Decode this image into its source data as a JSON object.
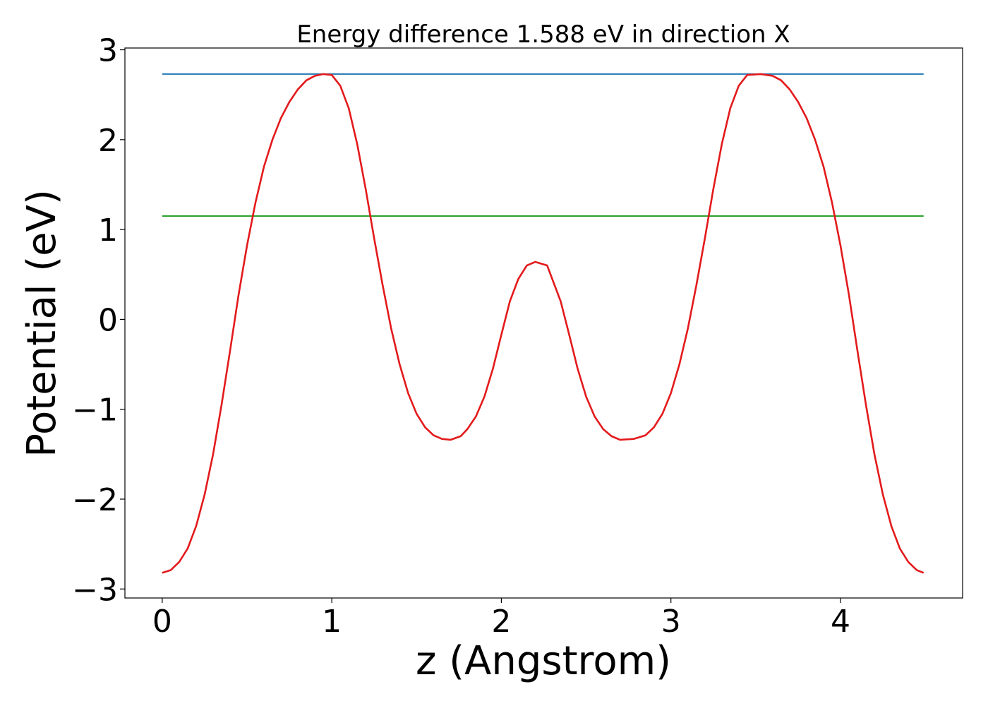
{
  "chart_data": {
    "type": "line",
    "title": "Energy difference 1.588 eV in direction X",
    "xlabel": "z (Angstrom)",
    "ylabel": "Potential (eV)",
    "xlim": [
      -0.22,
      4.72
    ],
    "ylim": [
      -3.1,
      3.02
    ],
    "xticks": [
      0,
      1,
      2,
      3,
      4
    ],
    "xtick_labels": [
      "0",
      "1",
      "2",
      "3",
      "4"
    ],
    "yticks": [
      -3,
      -2,
      -1,
      0,
      1,
      2,
      3
    ],
    "ytick_labels": [
      "−3",
      "−2",
      "−1",
      "0",
      "1",
      "2",
      "3"
    ],
    "grid": false,
    "series": [
      {
        "kind": "hline",
        "y": 2.73,
        "x": [
          0,
          4.49
        ],
        "color": "#1f77b4"
      },
      {
        "kind": "hline",
        "y": 1.15,
        "x": [
          0,
          4.49
        ],
        "color": "#2ca02c"
      },
      {
        "kind": "curve",
        "color": "#e31a1c",
        "x": [
          0,
          0.05,
          0.1,
          0.15,
          0.2,
          0.25,
          0.3,
          0.35,
          0.4,
          0.45,
          0.5,
          0.55,
          0.6,
          0.65,
          0.7,
          0.75,
          0.8,
          0.85,
          0.9,
          0.95,
          1.0,
          1.05,
          1.1,
          1.15,
          1.2,
          1.25,
          1.3,
          1.35,
          1.4,
          1.45,
          1.5,
          1.55,
          1.6,
          1.65,
          1.7,
          1.76,
          1.8,
          1.85,
          1.9,
          1.95,
          2.0,
          2.05,
          2.1,
          2.15,
          2.2,
          2.27,
          2.3,
          2.35,
          2.4,
          2.45,
          2.5,
          2.55,
          2.6,
          2.65,
          2.7,
          2.78,
          2.85,
          2.9,
          2.95,
          3.0,
          3.05,
          3.1,
          3.15,
          3.2,
          3.25,
          3.3,
          3.35,
          3.4,
          3.45,
          3.53,
          3.6,
          3.65,
          3.7,
          3.75,
          3.8,
          3.85,
          3.9,
          3.95,
          4.0,
          4.05,
          4.1,
          4.15,
          4.2,
          4.25,
          4.3,
          4.35,
          4.4,
          4.45,
          4.49
        ],
        "y": [
          -2.82,
          -2.79,
          -2.7,
          -2.55,
          -2.3,
          -1.95,
          -1.5,
          -0.95,
          -0.35,
          0.27,
          0.82,
          1.3,
          1.7,
          2.0,
          2.24,
          2.42,
          2.56,
          2.66,
          2.71,
          2.73,
          2.72,
          2.6,
          2.35,
          1.95,
          1.45,
          0.9,
          0.38,
          -0.1,
          -0.5,
          -0.82,
          -1.05,
          -1.2,
          -1.29,
          -1.33,
          -1.34,
          -1.3,
          -1.22,
          -1.08,
          -0.86,
          -0.55,
          -0.17,
          0.2,
          0.45,
          0.6,
          0.64,
          0.6,
          0.45,
          0.2,
          -0.17,
          -0.55,
          -0.86,
          -1.08,
          -1.22,
          -1.3,
          -1.34,
          -1.33,
          -1.29,
          -1.2,
          -1.05,
          -0.82,
          -0.5,
          -0.1,
          0.38,
          0.9,
          1.45,
          1.95,
          2.35,
          2.6,
          2.72,
          2.73,
          2.71,
          2.66,
          2.56,
          2.42,
          2.24,
          2.0,
          1.7,
          1.3,
          0.82,
          0.27,
          -0.35,
          -0.95,
          -1.5,
          -1.95,
          -2.3,
          -2.55,
          -2.7,
          -2.79,
          -2.82
        ]
      }
    ]
  }
}
